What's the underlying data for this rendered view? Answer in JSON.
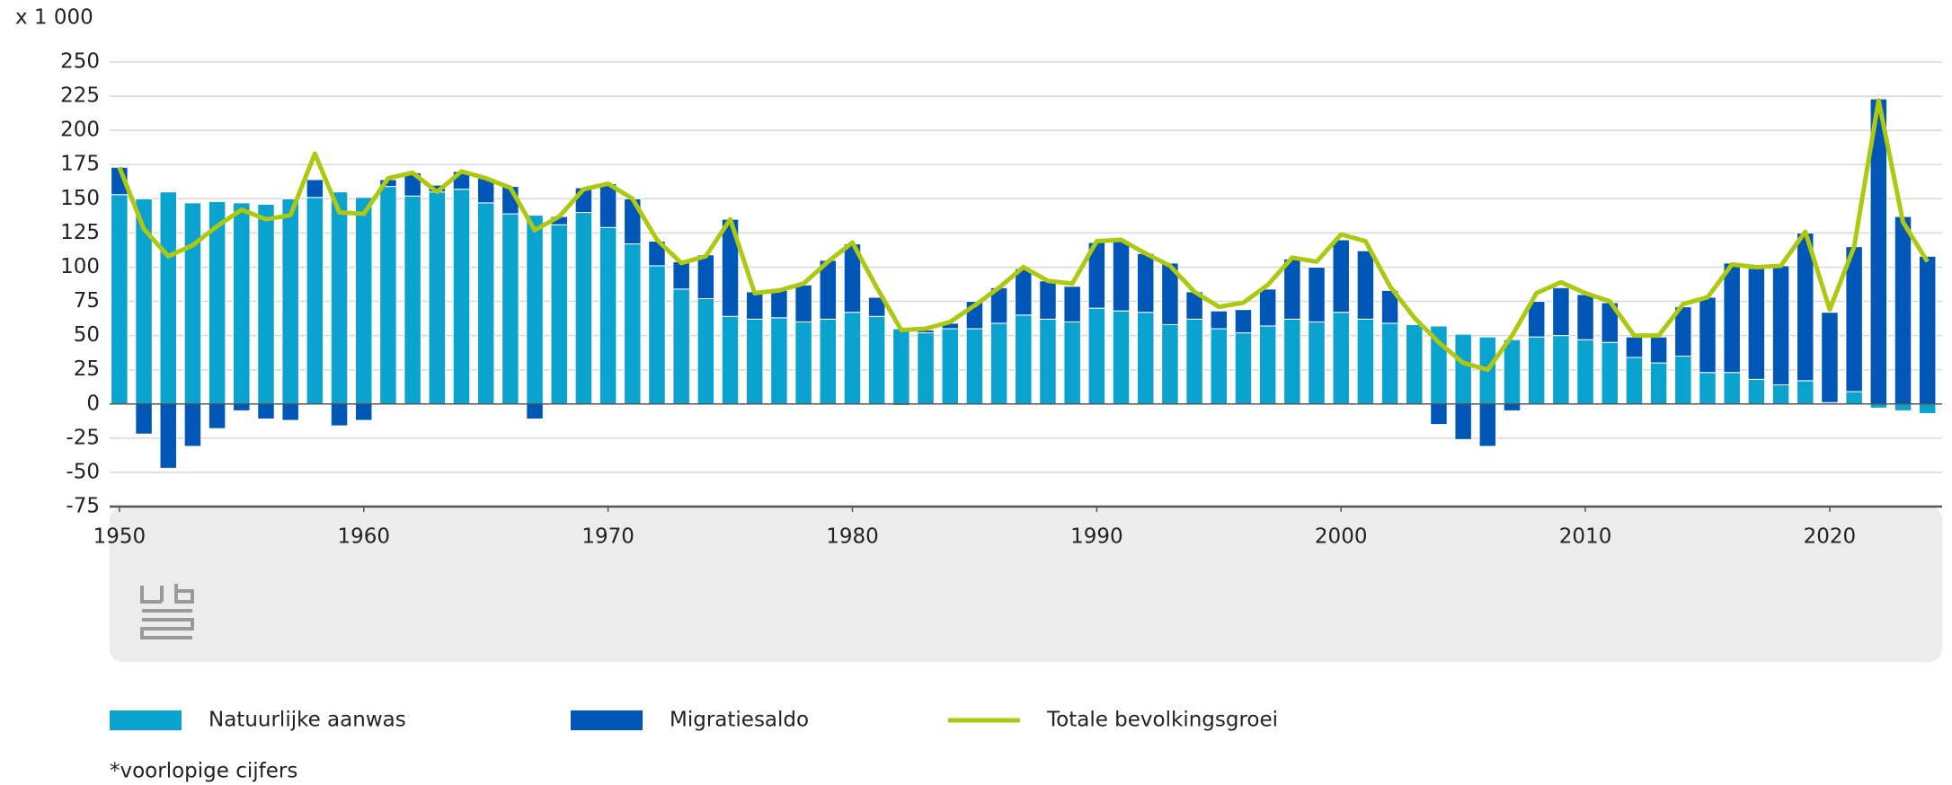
{
  "chart_data": {
    "type": "bar",
    "stacked": true,
    "y_unit_label": "x 1 000",
    "footnote": "*voorlopige cijfers",
    "x": [
      1950,
      1951,
      1952,
      1953,
      1954,
      1955,
      1956,
      1957,
      1958,
      1959,
      1960,
      1961,
      1962,
      1963,
      1964,
      1965,
      1966,
      1967,
      1968,
      1969,
      1970,
      1971,
      1972,
      1973,
      1974,
      1975,
      1976,
      1977,
      1978,
      1979,
      1980,
      1981,
      1982,
      1983,
      1984,
      1985,
      1986,
      1987,
      1988,
      1989,
      1990,
      1991,
      1992,
      1993,
      1994,
      1995,
      1996,
      1997,
      1998,
      1999,
      2000,
      2001,
      2002,
      2003,
      2004,
      2005,
      2006,
      2007,
      2008,
      2009,
      2010,
      2011,
      2012,
      2013,
      2014,
      2015,
      2016,
      2017,
      2018,
      2019,
      2020,
      2021,
      2022,
      2023,
      2024
    ],
    "series": [
      {
        "name": "Natuurlijke aanwas",
        "color": "#0aa3cf",
        "values": [
          153,
          150,
          155,
          147,
          148,
          147,
          146,
          150,
          151,
          155,
          151,
          159,
          152,
          155,
          157,
          147,
          139,
          138,
          131,
          140,
          129,
          117,
          101,
          84,
          77,
          64,
          62,
          63,
          60,
          62,
          67,
          64,
          55,
          52,
          55,
          55,
          59,
          65,
          62,
          60,
          70,
          68,
          67,
          58,
          62,
          55,
          52,
          57,
          62,
          60,
          67,
          62,
          59,
          58,
          57,
          51,
          49,
          47,
          49,
          50,
          47,
          45,
          34,
          30,
          35,
          23,
          23,
          18,
          14,
          17,
          1,
          9,
          -3,
          -5,
          -7
        ]
      },
      {
        "name": "Migratiesaldo",
        "color": "#0057b7",
        "values": [
          20,
          -22,
          -47,
          -31,
          -18,
          -5,
          -11,
          -12,
          13,
          -16,
          -12,
          5,
          17,
          5,
          13,
          18,
          20,
          -11,
          6,
          18,
          32,
          33,
          18,
          20,
          32,
          71,
          20,
          20,
          27,
          43,
          50,
          14,
          -1,
          2,
          4,
          20,
          26,
          34,
          28,
          26,
          48,
          51,
          43,
          45,
          20,
          13,
          17,
          27,
          44,
          40,
          53,
          50,
          24,
          0,
          -15,
          -26,
          -31,
          -5,
          26,
          35,
          33,
          29,
          15,
          19,
          36,
          55,
          80,
          81,
          87,
          108,
          66,
          106,
          223,
          137,
          108
        ]
      },
      {
        "name": "Totale bevolkingsgroei",
        "type": "line",
        "color": "#adc90f",
        "values": [
          173,
          128,
          108,
          116,
          130,
          142,
          135,
          138,
          183,
          140,
          139,
          165,
          169,
          155,
          170,
          165,
          158,
          127,
          137,
          157,
          161,
          150,
          120,
          103,
          108,
          135,
          81,
          83,
          88,
          104,
          118,
          85,
          54,
          55,
          60,
          72,
          85,
          100,
          90,
          88,
          119,
          120,
          110,
          101,
          82,
          71,
          74,
          87,
          107,
          104,
          124,
          119,
          86,
          63,
          45,
          30,
          25,
          50,
          81,
          89,
          81,
          75,
          50,
          50,
          73,
          78,
          102,
          100,
          101,
          126,
          69,
          115,
          222,
          133,
          104
        ]
      }
    ],
    "xlim": [
      1949.6,
      2024.6
    ],
    "xticks": [
      1950,
      1960,
      1970,
      1980,
      1990,
      2000,
      2010,
      2020
    ],
    "ylim": [
      -75,
      250
    ],
    "yticks": [
      -75,
      -50,
      -25,
      0,
      25,
      50,
      75,
      100,
      125,
      150,
      175,
      200,
      225,
      250
    ],
    "grid": true
  }
}
